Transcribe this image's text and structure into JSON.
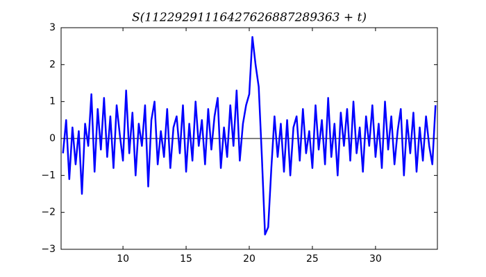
{
  "chart_data": {
    "type": "line",
    "title": "S(11229291116427626887289363 + t)",
    "x": [
      5.25,
      5.5,
      5.75,
      6,
      6.25,
      6.5,
      6.75,
      7,
      7.25,
      7.5,
      7.75,
      8,
      8.25,
      8.5,
      8.75,
      9,
      9.25,
      9.5,
      9.75,
      10,
      10.25,
      10.5,
      10.75,
      11,
      11.25,
      11.5,
      11.75,
      12,
      12.25,
      12.5,
      12.75,
      13,
      13.25,
      13.5,
      13.75,
      14,
      14.25,
      14.5,
      14.75,
      15,
      15.25,
      15.5,
      15.75,
      16,
      16.25,
      16.5,
      16.75,
      17,
      17.25,
      17.5,
      17.75,
      18,
      18.25,
      18.5,
      18.75,
      19,
      19.25,
      19.5,
      19.75,
      20,
      20.25,
      20.5,
      20.75,
      21,
      21.25,
      21.5,
      21.75,
      22,
      22.25,
      22.5,
      22.75,
      23,
      23.25,
      23.5,
      23.75,
      24,
      24.25,
      24.5,
      24.75,
      25,
      25.25,
      25.5,
      25.75,
      26,
      26.25,
      26.5,
      26.75,
      27,
      27.25,
      27.5,
      27.75,
      28,
      28.25,
      28.5,
      28.75,
      29,
      29.25,
      29.5,
      29.75,
      30,
      30.25,
      30.5,
      30.75,
      31,
      31.25,
      31.5,
      31.75,
      32,
      32.25,
      32.5,
      32.75,
      33,
      33.25,
      33.5,
      33.75,
      34,
      34.25,
      34.5,
      34.75
    ],
    "series": [
      {
        "name": "S",
        "color": "#0000ff",
        "values": [
          -0.4,
          0.5,
          -1.1,
          0.3,
          -0.7,
          0.2,
          -1.5,
          0.4,
          -0.2,
          1.2,
          -0.9,
          0.8,
          -0.3,
          1.1,
          -0.5,
          0.6,
          -0.8,
          0.9,
          0.1,
          -0.6,
          1.3,
          -0.4,
          0.7,
          -1.0,
          0.4,
          -0.2,
          0.9,
          -1.3,
          0.5,
          1.0,
          -0.7,
          0.2,
          -0.5,
          0.8,
          -0.8,
          0.3,
          0.6,
          -0.4,
          0.9,
          -0.9,
          0.4,
          -0.6,
          1.0,
          -0.2,
          0.5,
          -0.7,
          0.8,
          -0.3,
          0.6,
          1.1,
          -0.8,
          0.3,
          -0.5,
          0.9,
          -0.2,
          1.3,
          -0.6,
          0.4,
          0.9,
          1.2,
          2.75,
          2.0,
          1.4,
          -0.5,
          -2.6,
          -2.4,
          -0.8,
          0.6,
          -0.5,
          0.4,
          -0.9,
          0.5,
          -1.0,
          0.3,
          0.6,
          -0.6,
          0.8,
          -0.4,
          0.2,
          -0.8,
          0.9,
          -0.3,
          0.5,
          -0.7,
          1.1,
          -0.5,
          0.4,
          -1.0,
          0.7,
          -0.2,
          0.8,
          -0.6,
          1.0,
          -0.4,
          0.3,
          -0.9,
          0.6,
          -0.2,
          0.9,
          -0.5,
          0.4,
          -0.8,
          1.0,
          -0.3,
          0.6,
          -0.7,
          0.2,
          0.8,
          -1.0,
          0.5,
          -0.4,
          0.7,
          -0.9,
          0.3,
          -0.6,
          0.6,
          -0.2,
          -0.7,
          0.9
        ]
      }
    ],
    "xlim": [
      5.1,
      34.9
    ],
    "xticks": [
      10,
      15,
      20,
      25,
      30
    ],
    "ylim": [
      -3,
      3
    ],
    "yticks": [
      {
        "value": -3,
        "label": "−3"
      },
      {
        "value": -2,
        "label": "−2"
      },
      {
        "value": -1,
        "label": "−1"
      },
      0,
      1,
      2,
      3
    ],
    "zero_line": true
  }
}
